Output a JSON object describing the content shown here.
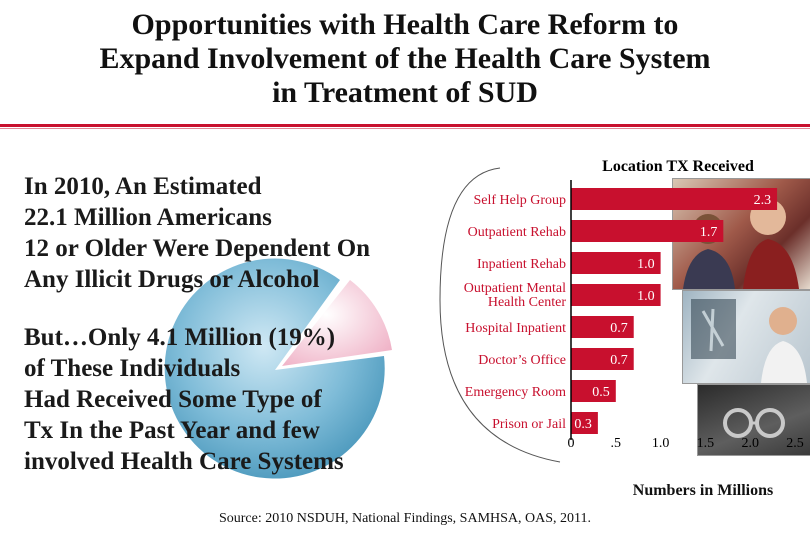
{
  "title": {
    "line1": "Opportunities with Health Care Reform to",
    "line2": "Expand Involvement of the Health Care System",
    "line3": "in Treatment of SUD"
  },
  "lead_text": [
    "In 2010, An Estimated",
    "22.1 Million Americans",
    "12 or Older Were Dependent On",
    "Any Illicit Drugs or Alcohol"
  ],
  "but_text": [
    "But…Only 4.1 Million (19%)",
    "of These Individuals",
    "Had Received Some Type of",
    "Tx In the Past Year and few",
    "involved Health Care Systems"
  ],
  "colors": {
    "accent": "#c8102e",
    "bar": "#c8102e",
    "pie_main": "#5aa8c8",
    "pie_slice": "#f2c0d0"
  },
  "chart_data": {
    "type": "bar",
    "orientation": "horizontal",
    "title": "Location TX Received",
    "xlabel": "Numbers in Millions",
    "categories": [
      [
        "Self Help Group"
      ],
      [
        "Outpatient Rehab"
      ],
      [
        "Inpatient Rehab"
      ],
      [
        "Outpatient Mental",
        "Health Center"
      ],
      [
        "Hospital Inpatient"
      ],
      [
        "Doctor’s Office"
      ],
      [
        "Emergency Room"
      ],
      [
        "Prison or Jail"
      ]
    ],
    "values": [
      2.3,
      1.7,
      1.0,
      1.0,
      0.7,
      0.7,
      0.5,
      0.3
    ],
    "value_labels": [
      "2.3",
      "1.7",
      "1.0",
      "1.0",
      "0.7",
      "0.7",
      "0.5",
      "0.3"
    ],
    "xlim": [
      0,
      2.5
    ],
    "ticks": [
      0,
      0.5,
      1.0,
      1.5,
      2.0,
      2.5
    ],
    "tick_labels": [
      "0",
      ".5",
      "1.0",
      "1.5",
      "2.0",
      "2.5"
    ],
    "grid": false
  },
  "source": "Source: 2010 NSDUH, National Findings, SAMHSA, OAS, 2011."
}
